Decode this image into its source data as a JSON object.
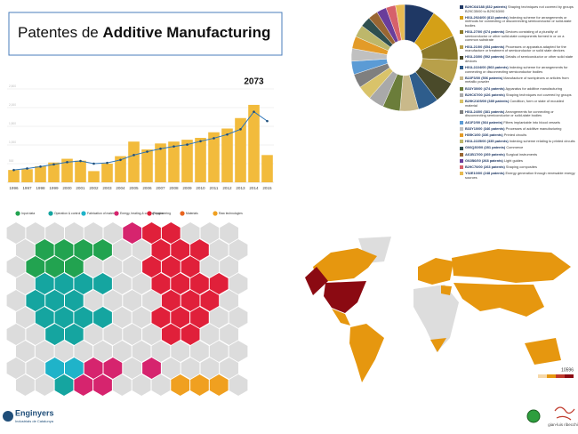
{
  "header": {
    "title_prefix": "Patentes de",
    "title_emphasis": "Additive Manufacturing"
  },
  "chart_data": [
    {
      "type": "bar",
      "categories": [
        "1996",
        "1997",
        "1998",
        "1999",
        "2000",
        "2001",
        "2002",
        "2003",
        "2004",
        "2005",
        "2006",
        "2007",
        "2008",
        "2009",
        "2010",
        "2011",
        "2012",
        "2013",
        "2014",
        "2015"
      ],
      "series": [
        {
          "type": "bar",
          "color": "#f2bb3c",
          "values": [
            330,
            350,
            430,
            530,
            630,
            580,
            300,
            500,
            700,
            1090,
            880,
            1040,
            1090,
            1140,
            1190,
            1340,
            1440,
            1720,
            2073,
            730
          ]
        },
        {
          "type": "line",
          "color": "#2e75b6",
          "values": [
            330,
            370,
            420,
            480,
            540,
            570,
            500,
            520,
            600,
            730,
            820,
            900,
            960,
            1010,
            1100,
            1180,
            1280,
            1420,
            1890,
            1640
          ]
        }
      ],
      "ylim": [
        0,
        2500
      ],
      "yticks": [
        500,
        {
          "value": 1000,
          "label": "1,000"
        },
        {
          "value": 1500,
          "label": "1,500"
        },
        {
          "value": 2000,
          "label": "2,000"
        },
        {
          "value": 2500,
          "label": "2,500"
        }
      ],
      "grid": true
    },
    {
      "type": "pie",
      "categories": [
        "B29C64/188",
        "H01L2924/00",
        "H01L27/00",
        "H01L21/00",
        "H01L23/00",
        "H01L2224/00",
        "B22F3/00",
        "B33Y30/00",
        "B29C67/00",
        "B29K2105/00",
        "H01L24/00",
        "A61F2/00",
        "B33Y10/00",
        "H05K1/00",
        "H01L2225/00",
        "G06Q30/00",
        "A61B17/00",
        "G02B6/00",
        "B29C70/00",
        "Y02E10/00"
      ],
      "values": [
        832,
        813,
        674,
        654,
        592,
        563,
        506,
        474,
        426,
        389,
        381,
        364,
        346,
        336,
        335,
        281,
        269,
        268,
        263,
        248
      ],
      "value_labels": [
        "(832 patents)",
        "(813 patents)",
        "(674 patents)",
        "(654 patents)",
        "(592 patents)",
        "(563 patents)",
        "(506 patents)",
        "(474 patents)",
        "(426 patents)",
        "(389 patents)",
        "(381 patents)",
        "(364 patents)",
        "(346 patents)",
        "(336 patents)",
        "(335 patents)",
        "(281 patents)",
        "(269 patents)",
        "(268 patents)",
        "(263 patents)",
        "(248 patents)"
      ],
      "descriptions": [
        "Shaping techniques not covered by groups B29C35/00 to B29C63/00",
        "Indexing scheme for arrangements or methods for connecting or disconnecting semiconductor or solid-state bodies",
        "Devices consisting of a plurality of semiconductor or other solid-state components formed in or on a common substrate",
        "Processes or apparatus adapted for the manufacture or treatment of semiconductor or solid state devices",
        "Details of semiconductor or other solid state devices",
        "Indexing scheme for arrangements for connecting or disconnecting semiconductor bodies",
        "Manufacture of workpieces or articles from metallic powder",
        "Apparatus for additive manufacturing",
        "Shaping techniques not covered by groups",
        "Condition, form or state of moulded material",
        "Arrangements for connecting or disconnecting semiconductor or solid-state bodies",
        "Filters implantable into blood vessels",
        "Processes of additive manufacturing",
        "Printed circuits",
        "Indexing scheme relating to printed circuits",
        "Commerce",
        "Surgical instruments",
        "Light guides",
        "Shaping composites",
        "Energy generation through renewable energy sources"
      ],
      "colors": [
        "#1f3864",
        "#d4a017",
        "#8c7a2b",
        "#b8a04a",
        "#4a4a2a",
        "#2e5d8c",
        "#c9b98a",
        "#6b7d3a",
        "#a9a9a9",
        "#d9c36a",
        "#7f7f7f",
        "#5b9bd5",
        "#c0c0c0",
        "#e39b28",
        "#bdb76b",
        "#2f4f4f",
        "#996633",
        "#6a3d9a",
        "#d6616b",
        "#e7ba52"
      ]
    }
  ],
  "hex_map": {
    "legend": [
      "Input data",
      "Operation & control",
      "Fabrication of material",
      "Energy, heating & cooling engineering",
      "Physics",
      "Materials",
      "Raw technologies"
    ],
    "legend_colors": [
      "#22a350",
      "#15a5a0",
      "#1fb3c9",
      "#d6246e",
      "#e0203a",
      "#e8641e",
      "#f0a020"
    ]
  },
  "world_map": {
    "scale_label": "10596"
  },
  "logos": {
    "left_name": "Enginyers",
    "left_sub": "Industrials de Catalunya",
    "right_name": "gian-luis ribecchi"
  }
}
